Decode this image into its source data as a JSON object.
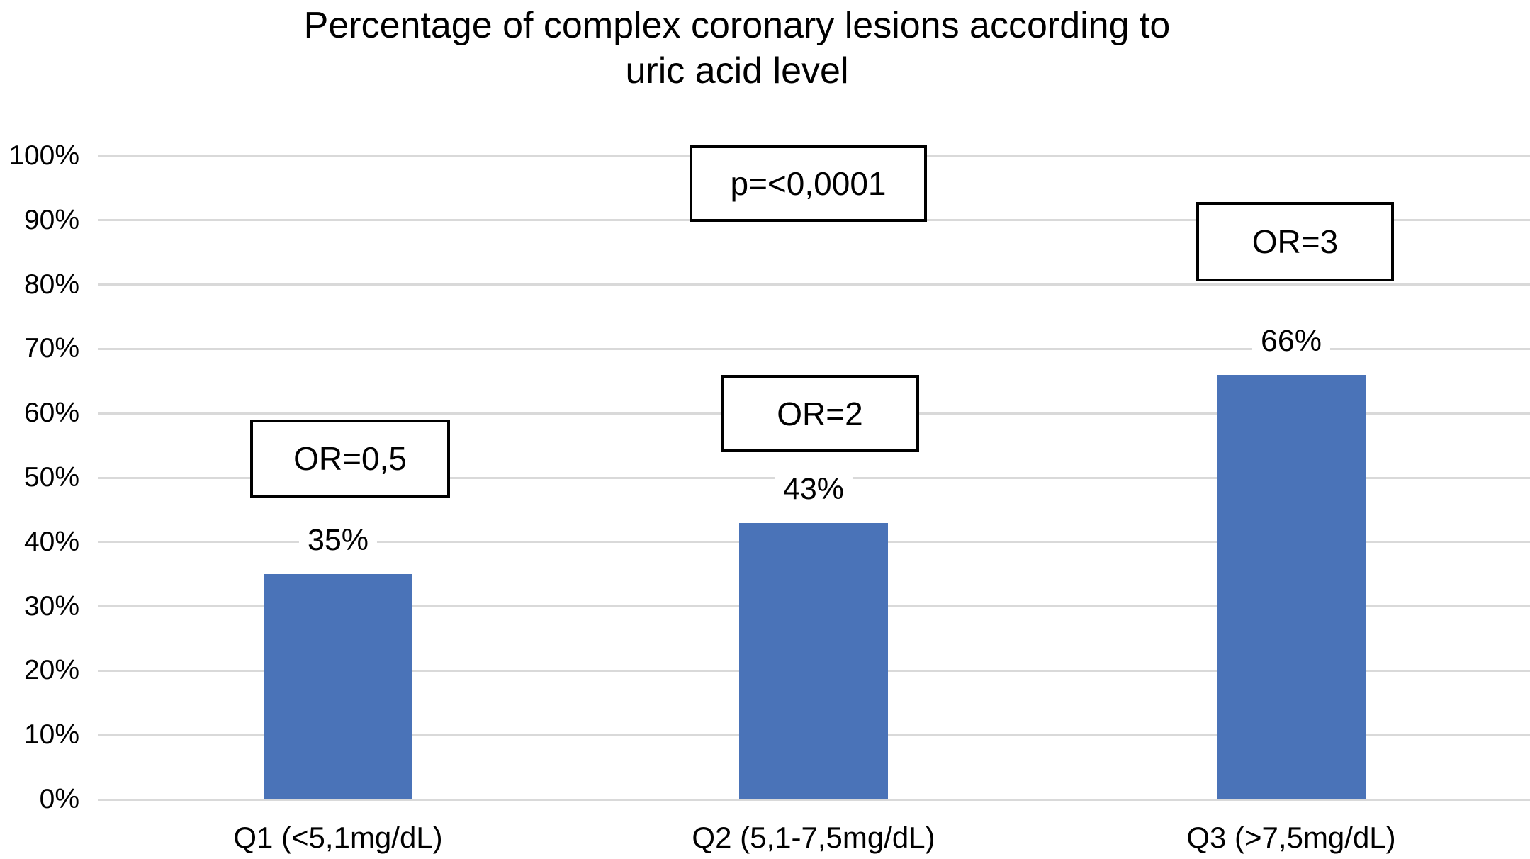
{
  "chart_data": {
    "type": "bar",
    "title_lines": [
      "Percentage of complex coronary lesions according to",
      "uric acid level"
    ],
    "categories": [
      "Q1 (<5,1mg/dL)",
      "Q2 (5,1-7,5mg/dL)",
      "Q3 (>7,5mg/dL)"
    ],
    "values": [
      35,
      43,
      66
    ],
    "value_labels": [
      "35%",
      "43%",
      "66%"
    ],
    "y_ticks": [
      "0%",
      "10%",
      "20%",
      "30%",
      "40%",
      "50%",
      "60%",
      "70%",
      "80%",
      "90%",
      "100%"
    ],
    "ylim": [
      0,
      100
    ],
    "xlabel": "",
    "ylabel": "",
    "grid": true,
    "legend": "none",
    "bar_color": "#4a73b8",
    "gridline_color": "#d9d9d9",
    "annotations": {
      "p_value": "p=<0,0001",
      "or_q1": "OR=0,5",
      "or_q2": "OR=2",
      "or_q3": "OR=3"
    }
  }
}
